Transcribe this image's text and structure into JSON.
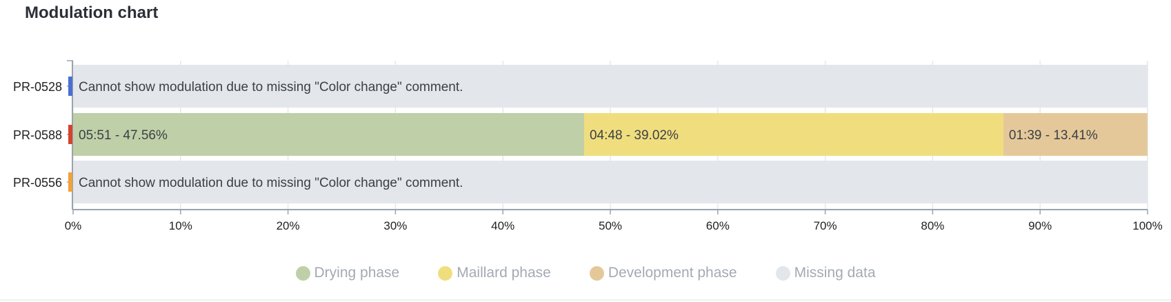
{
  "title": "Modulation chart",
  "chart_data": {
    "type": "bar",
    "orientation": "horizontal",
    "stacked": true,
    "grid": true,
    "xlim": [
      0,
      100
    ],
    "x_ticks": [
      "0%",
      "10%",
      "20%",
      "30%",
      "40%",
      "50%",
      "60%",
      "70%",
      "80%",
      "90%",
      "100%"
    ],
    "categories": [
      {
        "label": "PR-0528",
        "marker_color": "#4a6fd4"
      },
      {
        "label": "PR-0588",
        "marker_color": "#d4432f"
      },
      {
        "label": "PR-0556",
        "marker_color": "#f0a13c"
      }
    ],
    "rows": [
      {
        "category": "PR-0528",
        "segments": [
          {
            "series": "Missing data",
            "value": 100,
            "label": "Cannot show modulation due to missing \"Color change\" comment."
          }
        ]
      },
      {
        "category": "PR-0588",
        "segments": [
          {
            "series": "Drying phase",
            "value": 47.56,
            "label": "05:51 - 47.56%"
          },
          {
            "series": "Maillard phase",
            "value": 39.02,
            "label": "04:48 - 39.02%"
          },
          {
            "series": "Development phase",
            "value": 13.41,
            "label": "01:39 - 13.41%"
          }
        ]
      },
      {
        "category": "PR-0556",
        "segments": [
          {
            "series": "Missing data",
            "value": 100,
            "label": "Cannot show modulation due to missing \"Color change\" comment."
          }
        ]
      }
    ],
    "legend_position": "bottom",
    "series": [
      {
        "name": "Drying phase",
        "color": "#bfd0a8"
      },
      {
        "name": "Maillard phase",
        "color": "#f0de7e"
      },
      {
        "name": "Development phase",
        "color": "#e5c89a"
      },
      {
        "name": "Missing data",
        "color": "#e3e6ea"
      }
    ]
  }
}
